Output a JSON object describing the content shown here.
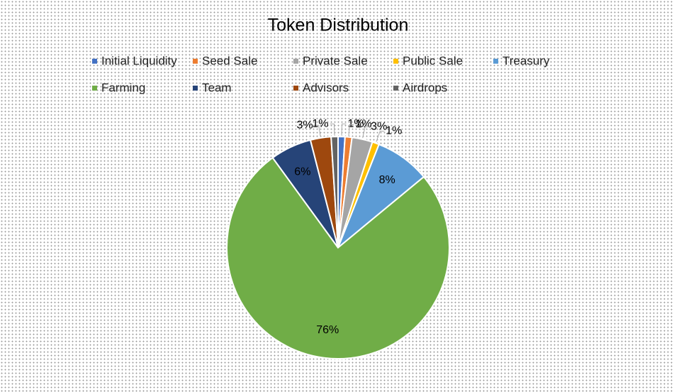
{
  "chart_data": {
    "type": "pie",
    "title": "Token Distribution",
    "categories": [
      "Initial Liquidity",
      "Seed Sale",
      "Private Sale",
      "Public Sale",
      "Treasury",
      "Farming",
      "Team",
      "Advisors",
      "Airdrops"
    ],
    "values": [
      1,
      1,
      3,
      1,
      8,
      76,
      6,
      3,
      1
    ],
    "value_labels": [
      "1%",
      "1%",
      "3%",
      "1%",
      "8%",
      "76%",
      "6%",
      "3%",
      "1%"
    ],
    "colors": [
      "#4472c4",
      "#ed7d31",
      "#a5a5a5",
      "#ffc000",
      "#5b9bd5",
      "#70ad47",
      "#264478",
      "#9e480e",
      "#636363"
    ],
    "legend": "top"
  }
}
